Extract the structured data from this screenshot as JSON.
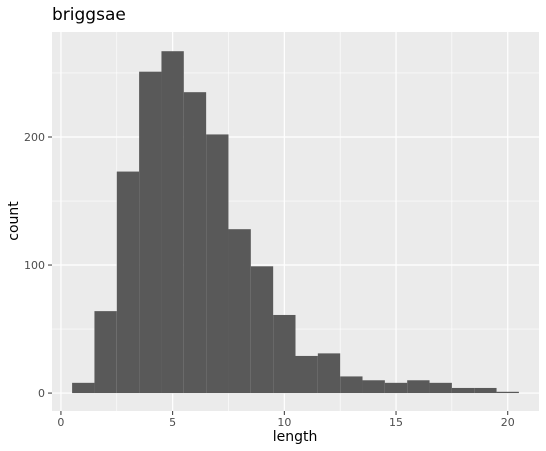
{
  "chart_data": {
    "type": "bar",
    "title": "briggsae",
    "xlabel": "length",
    "ylabel": "count",
    "bin_width": 1,
    "bin_centers": [
      1,
      2,
      3,
      4,
      5,
      6,
      7,
      8,
      9,
      10,
      11,
      12,
      13,
      14,
      15,
      16,
      17,
      18,
      19,
      20
    ],
    "values": [
      8,
      64,
      173,
      251,
      267,
      235,
      202,
      128,
      99,
      61,
      29,
      31,
      13,
      10,
      8,
      10,
      8,
      4,
      4,
      1
    ],
    "xlim": [
      -0.4,
      21.4
    ],
    "ylim": [
      -14,
      282
    ],
    "x_ticks": [
      0,
      5,
      10,
      15,
      20
    ],
    "y_ticks": [
      0,
      100,
      200
    ],
    "grid": true,
    "colors": {
      "bar": "#595959",
      "panel": "#ebebeb",
      "grid_major": "#ffffff"
    }
  }
}
